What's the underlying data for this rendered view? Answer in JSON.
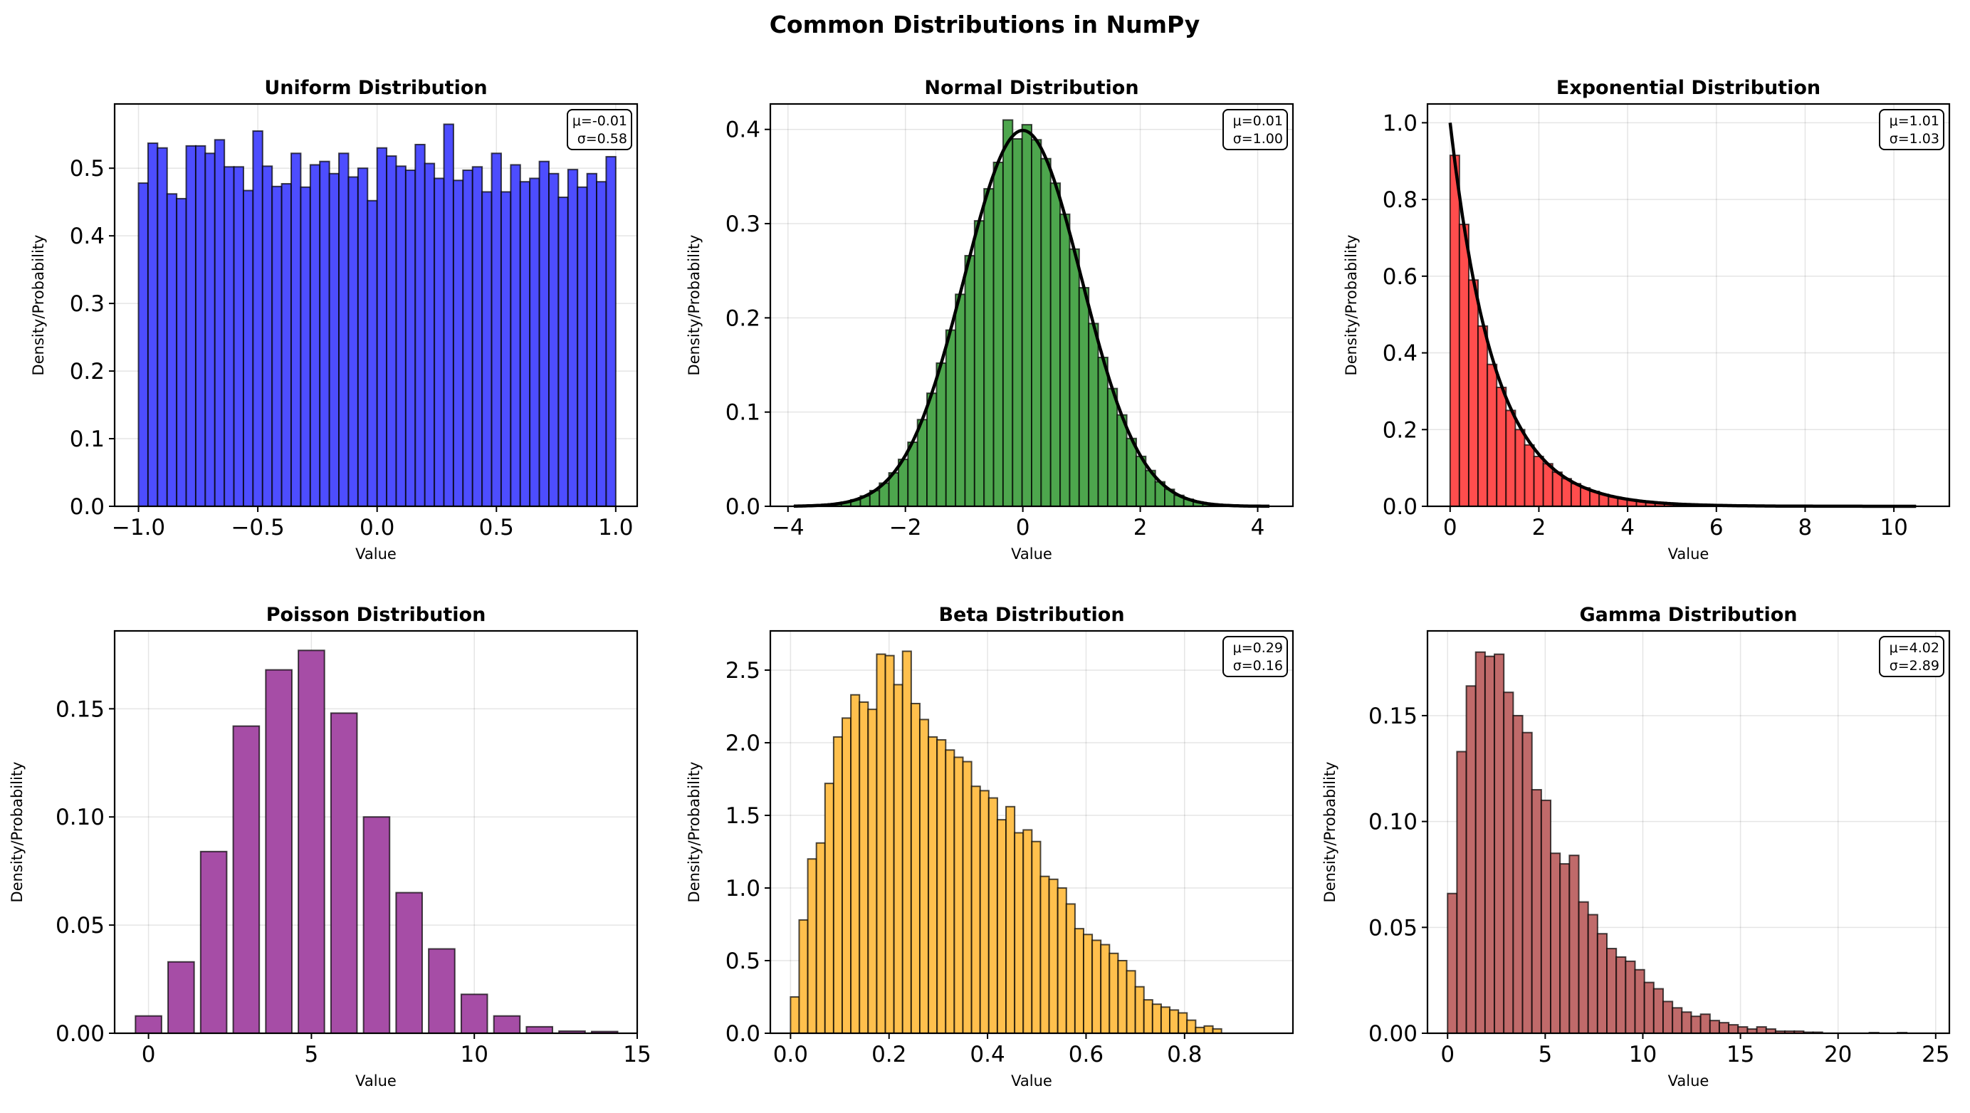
{
  "chart_data": [
    {
      "type": "bar",
      "title": "Uniform Distribution",
      "xlabel": "Value",
      "ylabel": "Density/Probability",
      "color": "#4d4dff",
      "xlim": [
        -1.1,
        1.09
      ],
      "ylim": [
        0,
        0.595
      ],
      "xticks": [
        -1.0,
        -0.5,
        0.0,
        0.5,
        1.0
      ],
      "xtick_labels": [
        "−1.0",
        "−0.5",
        "0.0",
        "0.5",
        "1.0"
      ],
      "yticks": [
        0,
        0.1,
        0.2,
        0.3,
        0.4,
        0.5
      ],
      "ytick_labels": [
        "0.0",
        "0.1",
        "0.2",
        "0.3",
        "0.4",
        "0.5"
      ],
      "bin_start": -1.0,
      "bin_width": 0.04,
      "values": [
        0.478,
        0.537,
        0.53,
        0.462,
        0.455,
        0.533,
        0.533,
        0.522,
        0.542,
        0.502,
        0.502,
        0.467,
        0.555,
        0.503,
        0.473,
        0.477,
        0.522,
        0.472,
        0.505,
        0.51,
        0.492,
        0.522,
        0.487,
        0.5,
        0.452,
        0.53,
        0.518,
        0.503,
        0.497,
        0.535,
        0.507,
        0.485,
        0.565,
        0.482,
        0.497,
        0.502,
        0.465,
        0.522,
        0.465,
        0.505,
        0.48,
        0.485,
        0.51,
        0.492,
        0.457,
        0.498,
        0.472,
        0.492,
        0.48,
        0.517
      ],
      "stats": [
        "μ=-0.01",
        "σ=0.58"
      ]
    },
    {
      "type": "bar",
      "title": "Normal Distribution",
      "xlabel": "Value",
      "ylabel": "Density/Probability",
      "color": "#4da64d",
      "xlim": [
        -4.3,
        4.6
      ],
      "ylim": [
        0,
        0.427
      ],
      "xticks": [
        -4,
        -2,
        0,
        2,
        4
      ],
      "xtick_labels": [
        "−4",
        "−2",
        "0",
        "2",
        "4"
      ],
      "yticks": [
        0,
        0.1,
        0.2,
        0.3,
        0.4
      ],
      "ytick_labels": [
        "0.0",
        "0.1",
        "0.2",
        "0.3",
        "0.4"
      ],
      "bin_start": -3.9,
      "bin_width": 0.162,
      "values": [
        0.0003,
        0.0005,
        0.0009,
        0.0016,
        0.0026,
        0.0043,
        0.0069,
        0.011,
        0.0167,
        0.0246,
        0.0355,
        0.0498,
        0.068,
        0.092,
        0.12,
        0.152,
        0.187,
        0.225,
        0.266,
        0.303,
        0.337,
        0.365,
        0.41,
        0.39,
        0.405,
        0.389,
        0.369,
        0.343,
        0.31,
        0.273,
        0.232,
        0.194,
        0.158,
        0.125,
        0.097,
        0.072,
        0.053,
        0.038,
        0.026,
        0.018,
        0.0116,
        0.0075,
        0.0047,
        0.0029,
        0.0017,
        0.001,
        0.0005,
        0.0003,
        0.0002,
        0.0001
      ],
      "curve": "normal_pdf",
      "curve_range": [
        -3.9,
        4.2
      ],
      "stats": [
        "μ=0.01",
        "σ=1.00"
      ]
    },
    {
      "type": "bar",
      "title": "Exponential Distribution",
      "xlabel": "Value",
      "ylabel": "Density/Probability",
      "color": "#ff4d4d",
      "xlim": [
        -0.51,
        11.25
      ],
      "ylim": [
        0,
        1.049
      ],
      "xticks": [
        0,
        2,
        4,
        6,
        8,
        10
      ],
      "xtick_labels": [
        "0",
        "2",
        "4",
        "6",
        "8",
        "10"
      ],
      "yticks": [
        0,
        0.2,
        0.4,
        0.6,
        0.8,
        1.0
      ],
      "ytick_labels": [
        "0.0",
        "0.2",
        "0.4",
        "0.6",
        "0.8",
        "1.0"
      ],
      "bin_start": 0,
      "bin_width": 0.21,
      "values": [
        0.915,
        0.735,
        0.59,
        0.47,
        0.37,
        0.31,
        0.25,
        0.2,
        0.16,
        0.13,
        0.111,
        0.089,
        0.072,
        0.059,
        0.048,
        0.039,
        0.031,
        0.025,
        0.02,
        0.017,
        0.013,
        0.011,
        0.009,
        0.007,
        0.006,
        0.005,
        0.004,
        0.003,
        0.0025,
        0.002,
        0.0015,
        0.001,
        0.001,
        0.0008,
        0.0005,
        0.0005,
        0.0003,
        0,
        0.0003,
        0,
        0,
        0.0002,
        0,
        0,
        0,
        0,
        0,
        0,
        0,
        0.0002
      ],
      "curve": "exponential_pdf",
      "curve_range": [
        0,
        10.5
      ],
      "stats": [
        "μ=1.01",
        "σ=1.03"
      ]
    },
    {
      "type": "bar",
      "title": "Poisson Distribution",
      "xlabel": "Value",
      "ylabel": "Density/Probability",
      "color": "#a64da6",
      "xlim": [
        -1.04,
        15
      ],
      "ylim": [
        0,
        0.186
      ],
      "xticks": [
        0,
        5,
        10,
        15
      ],
      "xtick_labels": [
        "0",
        "5",
        "10",
        "15"
      ],
      "yticks": [
        0,
        0.05,
        0.1,
        0.15
      ],
      "ytick_labels": [
        "0.00",
        "0.05",
        "0.10",
        "0.15"
      ],
      "categories": [
        0,
        1,
        2,
        3,
        4,
        5,
        6,
        7,
        8,
        9,
        10,
        11,
        12,
        13,
        14
      ],
      "bar_width": 0.8,
      "values": [
        0.008,
        0.033,
        0.084,
        0.142,
        0.168,
        0.177,
        0.148,
        0.1,
        0.065,
        0.039,
        0.018,
        0.008,
        0.003,
        0.001,
        0.0008
      ]
    },
    {
      "type": "bar",
      "title": "Beta Distribution",
      "xlabel": "Value",
      "ylabel": "Density/Probability",
      "color": "#ffc04d",
      "xlim": [
        -0.041,
        1.02
      ],
      "ylim": [
        0,
        2.77
      ],
      "xticks": [
        0,
        0.2,
        0.4,
        0.6,
        0.8
      ],
      "xtick_labels": [
        "0.0",
        "0.2",
        "0.4",
        "0.6",
        "0.8"
      ],
      "yticks": [
        0,
        0.5,
        1.0,
        1.5,
        2.0,
        2.5
      ],
      "ytick_labels": [
        "0.0",
        "0.5",
        "1.0",
        "1.5",
        "2.0",
        "2.5"
      ],
      "bin_start": 0,
      "bin_width": 0.0175,
      "values": [
        0.25,
        0.78,
        1.2,
        1.31,
        1.72,
        2.04,
        2.17,
        2.33,
        2.28,
        2.23,
        2.61,
        2.6,
        2.4,
        2.63,
        2.27,
        2.16,
        2.04,
        2.02,
        1.95,
        1.9,
        1.87,
        1.7,
        1.67,
        1.62,
        1.47,
        1.56,
        1.38,
        1.4,
        1.32,
        1.08,
        1.06,
        1.0,
        0.89,
        0.72,
        0.68,
        0.64,
        0.61,
        0.55,
        0.5,
        0.43,
        0.32,
        0.23,
        0.2,
        0.18,
        0.16,
        0.14,
        0.09,
        0.04,
        0.05,
        0.03
      ],
      "stats": [
        "μ=0.29",
        "σ=0.16"
      ]
    },
    {
      "type": "bar",
      "title": "Gamma Distribution",
      "xlabel": "Value",
      "ylabel": "Density/Probability",
      "color": "#c06a6a",
      "xlim": [
        -1.03,
        25.7
      ],
      "ylim": [
        0,
        0.19
      ],
      "xticks": [
        0,
        5,
        10,
        15,
        20,
        25
      ],
      "xtick_labels": [
        "0",
        "5",
        "10",
        "15",
        "20",
        "25"
      ],
      "yticks": [
        0,
        0.05,
        0.1,
        0.15
      ],
      "ytick_labels": [
        "0.00",
        "0.05",
        "0.10",
        "0.15"
      ],
      "bin_start": 0,
      "bin_width": 0.48,
      "values": [
        0.066,
        0.133,
        0.164,
        0.18,
        0.178,
        0.179,
        0.161,
        0.15,
        0.142,
        0.115,
        0.11,
        0.085,
        0.08,
        0.084,
        0.062,
        0.056,
        0.047,
        0.04,
        0.036,
        0.034,
        0.03,
        0.024,
        0.021,
        0.015,
        0.012,
        0.01,
        0.008,
        0.009,
        0.006,
        0.005,
        0.004,
        0.003,
        0.002,
        0.003,
        0.002,
        0.001,
        0.001,
        0.001,
        0.0005,
        0.0005,
        0,
        0,
        0,
        0,
        0,
        0.0003,
        0,
        0,
        0.0003,
        0
      ],
      "stats": [
        "μ=4.02",
        "σ=2.89"
      ]
    }
  ],
  "suptitle": "Common Distributions in NumPy"
}
